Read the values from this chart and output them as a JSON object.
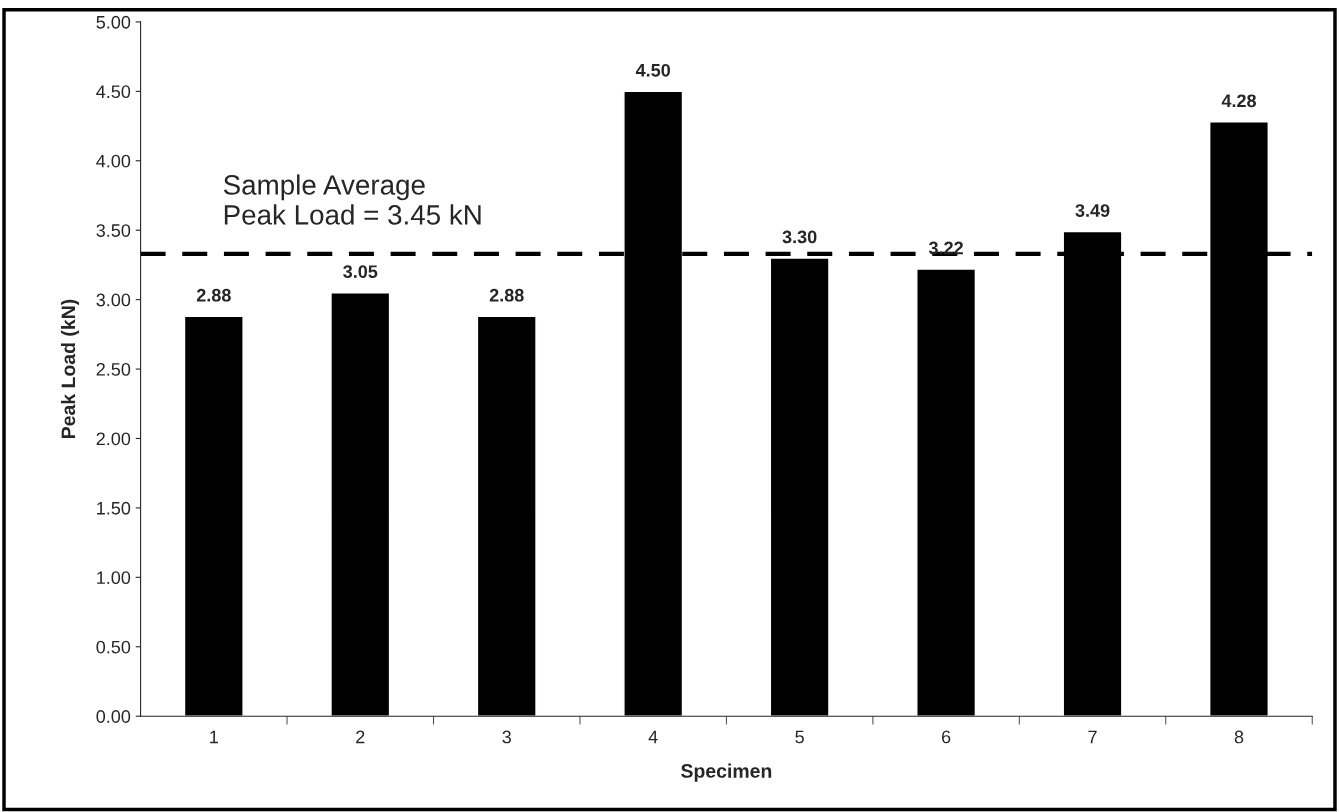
{
  "chart_data": {
    "type": "bar",
    "xlabel": "Specimen",
    "ylabel": "Peak Load (kN)",
    "categories": [
      "1",
      "2",
      "3",
      "4",
      "5",
      "6",
      "7",
      "8"
    ],
    "values": [
      2.88,
      3.05,
      2.88,
      4.5,
      3.3,
      3.22,
      3.49,
      4.28
    ],
    "color": "#000000",
    "ylim": [
      0,
      5
    ],
    "yticks": [
      {
        "value": 0,
        "label": "0.00"
      },
      {
        "value": 0.5,
        "label": "0.50"
      },
      {
        "value": 1,
        "label": "1.00"
      },
      {
        "value": 1.5,
        "label": "1.50"
      },
      {
        "value": 2,
        "label": "2.00"
      },
      {
        "value": 2.5,
        "label": "2.50"
      },
      {
        "value": 3,
        "label": "3.00"
      },
      {
        "value": 3.5,
        "label": "3.50"
      },
      {
        "value": 4,
        "label": "4.00"
      },
      {
        "value": 4.5,
        "label": "4.50"
      },
      {
        "value": 5,
        "label": "5.00"
      }
    ],
    "value_labels": [
      "2.88",
      "3.05",
      "2.88",
      "4.50",
      "3.30",
      "3.22",
      "3.49",
      "4.28"
    ],
    "ref_lines": [
      {
        "axis": "y",
        "value": 3.33,
        "color": "#000000",
        "line_style": "dashed"
      }
    ],
    "annotations": [
      "Sample Average\nPeak Load = 3.45 kN"
    ],
    "grid": false
  }
}
